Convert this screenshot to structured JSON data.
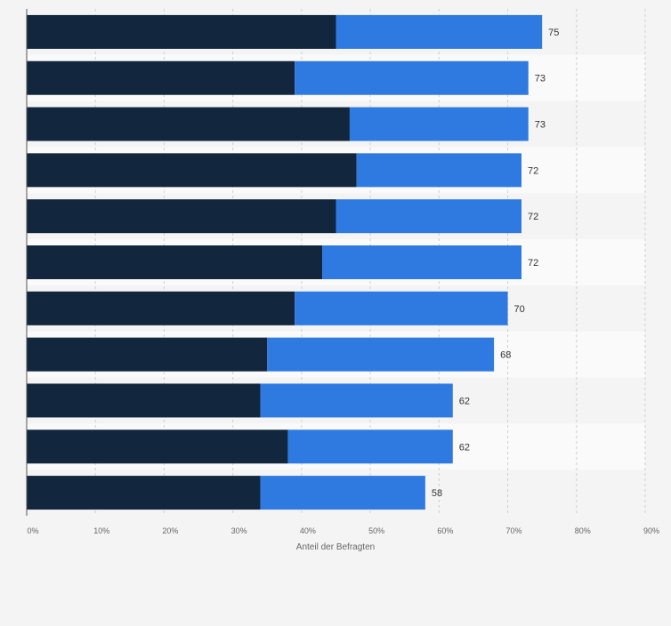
{
  "chart_data": {
    "type": "bar",
    "orientation": "horizontal",
    "stacked": true,
    "xlabel": "Anteil der Befragten",
    "xlim": [
      0,
      90
    ],
    "x_ticks": [
      "0%",
      "10%",
      "20%",
      "30%",
      "40%",
      "50%",
      "60%",
      "70%",
      "80%",
      "90%"
    ],
    "grid": true,
    "series": [
      {
        "color": "#12263e",
        "values": [
          45,
          39,
          47,
          48,
          45,
          43,
          39,
          35,
          34,
          38,
          34
        ]
      },
      {
        "color": "#2f7ae0",
        "values": [
          30,
          34,
          26,
          24,
          27,
          29,
          31,
          33,
          28,
          24,
          24
        ]
      }
    ],
    "totals": [
      "75",
      "73",
      "73",
      "72",
      "72",
      "72",
      "70",
      "68",
      "62",
      "62",
      "58"
    ]
  }
}
